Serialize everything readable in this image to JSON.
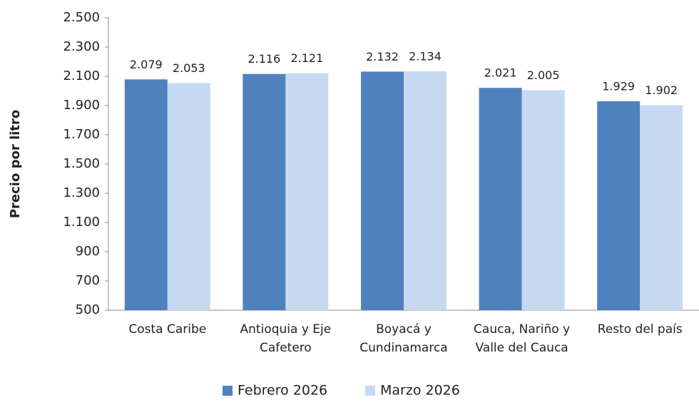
{
  "chart_data": {
    "type": "bar",
    "y_label": "Precio por litro",
    "categories": [
      "Costa Caribe",
      "Antioquia y Eje Cafetero",
      "Boyacá y Cundinamarca",
      "Cauca, Nariño y Valle del Cauca",
      "Resto del país"
    ],
    "series": [
      {
        "name": "Febrero 2026",
        "color": "#4f81bd",
        "values": [
          2079,
          2116,
          2132,
          2021,
          1929
        ],
        "value_labels": [
          "2.079",
          "2.116",
          "2.132",
          "2.021",
          "1.929"
        ]
      },
      {
        "name": "Marzo 2026",
        "color": "#c6d9f1",
        "values": [
          2053,
          2121,
          2134,
          2005,
          1902
        ],
        "value_labels": [
          "2.053",
          "2.121",
          "2.134",
          "2.005",
          "1.902"
        ]
      }
    ],
    "ylim": [
      500,
      2500
    ],
    "yticks": [
      500,
      700,
      900,
      {
        "value": 1100,
        "label": "1.100"
      },
      {
        "value": 1300,
        "label": "1.300"
      },
      {
        "value": 1500,
        "label": "1.500"
      },
      {
        "value": 1700,
        "label": "1.700"
      },
      {
        "value": 1900,
        "label": "1.900"
      },
      {
        "value": 2100,
        "label": "2.100"
      },
      {
        "value": 2300,
        "label": "2.300"
      },
      {
        "value": 2500,
        "label": "2.500"
      }
    ],
    "grid": false,
    "legend": "bottom"
  }
}
